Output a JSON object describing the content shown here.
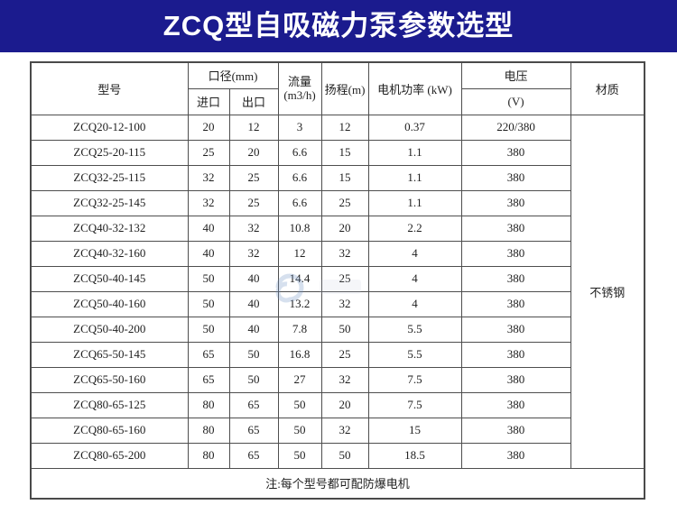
{
  "banner": {
    "title": "ZCQ型自吸磁力泵参数选型",
    "bg_color": "#1b1b8e",
    "text_color": "#ffffff"
  },
  "table": {
    "headers": {
      "model": "型号",
      "caliber_group": "口径(mm)",
      "inlet": "进口",
      "outlet": "出口",
      "flow_line1": "流量",
      "flow_line2": "(m3/h)",
      "head": "扬程(m)",
      "power": "电机功率 (kW)",
      "voltage_line1": "电压",
      "voltage_line2": "(V)",
      "material": "材质"
    },
    "material_value": "不锈钢",
    "rows": [
      {
        "model": "ZCQ20-12-100",
        "inlet": "20",
        "outlet": "12",
        "flow": "3",
        "head": "12",
        "power": "0.37",
        "voltage": "220/380"
      },
      {
        "model": "ZCQ25-20-115",
        "inlet": "25",
        "outlet": "20",
        "flow": "6.6",
        "head": "15",
        "power": "1.1",
        "voltage": "380"
      },
      {
        "model": "ZCQ32-25-115",
        "inlet": "32",
        "outlet": "25",
        "flow": "6.6",
        "head": "15",
        "power": "1.1",
        "voltage": "380"
      },
      {
        "model": "ZCQ32-25-145",
        "inlet": "32",
        "outlet": "25",
        "flow": "6.6",
        "head": "25",
        "power": "1.1",
        "voltage": "380"
      },
      {
        "model": "ZCQ40-32-132",
        "inlet": "40",
        "outlet": "32",
        "flow": "10.8",
        "head": "20",
        "power": "2.2",
        "voltage": "380"
      },
      {
        "model": "ZCQ40-32-160",
        "inlet": "40",
        "outlet": "32",
        "flow": "12",
        "head": "32",
        "power": "4",
        "voltage": "380"
      },
      {
        "model": "ZCQ50-40-145",
        "inlet": "50",
        "outlet": "40",
        "flow": "14.4",
        "head": "25",
        "power": "4",
        "voltage": "380"
      },
      {
        "model": "ZCQ50-40-160",
        "inlet": "50",
        "outlet": "40",
        "flow": "13.2",
        "head": "32",
        "power": "4",
        "voltage": "380"
      },
      {
        "model": "ZCQ50-40-200",
        "inlet": "50",
        "outlet": "40",
        "flow": "7.8",
        "head": "50",
        "power": "5.5",
        "voltage": "380"
      },
      {
        "model": "ZCQ65-50-145",
        "inlet": "65",
        "outlet": "50",
        "flow": "16.8",
        "head": "25",
        "power": "5.5",
        "voltage": "380"
      },
      {
        "model": "ZCQ65-50-160",
        "inlet": "65",
        "outlet": "50",
        "flow": "27",
        "head": "32",
        "power": "7.5",
        "voltage": "380"
      },
      {
        "model": "ZCQ80-65-125",
        "inlet": "80",
        "outlet": "65",
        "flow": "50",
        "head": "20",
        "power": "7.5",
        "voltage": "380"
      },
      {
        "model": "ZCQ80-65-160",
        "inlet": "80",
        "outlet": "65",
        "flow": "50",
        "head": "32",
        "power": "15",
        "voltage": "380"
      },
      {
        "model": "ZCQ80-65-200",
        "inlet": "80",
        "outlet": "65",
        "flow": "50",
        "head": "50",
        "power": "18.5",
        "voltage": "380"
      }
    ],
    "footer_note": "注:每个型号都可配防爆电机"
  },
  "watermark_icon": "faint-swirl-logo",
  "colors": {
    "banner_bg": "#1b1b8e",
    "table_border": "#4a4a4a",
    "text": "#1e1e1e"
  }
}
